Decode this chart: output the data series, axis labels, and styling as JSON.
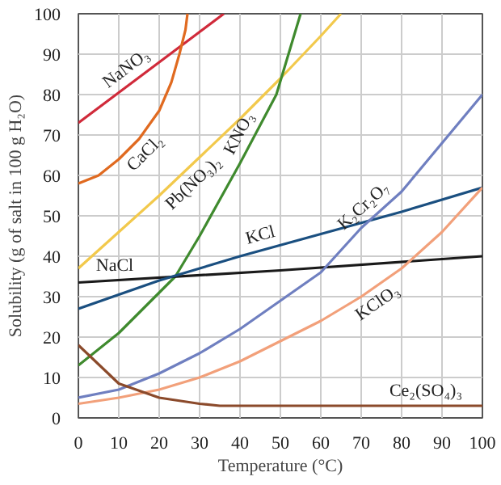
{
  "chart_data": {
    "type": "line",
    "xlabel": "Temperature (°C)",
    "ylabel": "Solubility (g of salt in 100 g H₂O)",
    "xlim": [
      0,
      100
    ],
    "ylim": [
      0,
      100
    ],
    "xticks": [
      0,
      10,
      20,
      30,
      40,
      50,
      60,
      70,
      80,
      90,
      100
    ],
    "yticks": [
      0,
      10,
      20,
      30,
      40,
      50,
      60,
      70,
      80,
      90,
      100
    ],
    "grid": true,
    "marker": "none",
    "line_style": "solid",
    "series": [
      {
        "name": "NaNO₃",
        "color": "#d02a3a",
        "x": [
          0,
          10,
          20,
          30,
          36
        ],
        "values": [
          73,
          80.5,
          88,
          95.5,
          100
        ]
      },
      {
        "name": "CaCl₂",
        "color": "#e06a20",
        "x": [
          0,
          5,
          10,
          15,
          20,
          23,
          25,
          26.5,
          27
        ],
        "values": [
          58,
          60,
          64,
          69,
          76,
          83,
          90,
          96,
          100
        ]
      },
      {
        "name": "Pb(NO₃)₂",
        "color": "#f2c94c",
        "x": [
          0,
          10,
          20,
          30,
          40,
          50,
          60,
          65
        ],
        "values": [
          37,
          46,
          55,
          64.5,
          74,
          84,
          94.5,
          100
        ]
      },
      {
        "name": "KNO₃",
        "color": "#3f8a2e",
        "x": [
          0,
          10,
          20,
          24,
          30,
          40,
          49,
          55
        ],
        "values": [
          13,
          21,
          31,
          35,
          45,
          63,
          80,
          100
        ]
      },
      {
        "name": "NaCl",
        "color": "#1a1a1a",
        "x": [
          0,
          50,
          100
        ],
        "values": [
          33.5,
          36.5,
          40
        ]
      },
      {
        "name": "KCl",
        "color": "#1a4f80",
        "x": [
          0,
          20,
          40,
          60,
          80,
          100
        ],
        "values": [
          27,
          34,
          40,
          45.5,
          51,
          57
        ]
      },
      {
        "name": "K₂Cr₂O₇",
        "color": "#6f7fc0",
        "x": [
          0,
          10,
          20,
          30,
          40,
          50,
          60,
          70,
          80,
          90,
          100
        ],
        "values": [
          5,
          7,
          11,
          16,
          22,
          29,
          36,
          47,
          56,
          68,
          80
        ]
      },
      {
        "name": "KClO₃",
        "color": "#f2a07a",
        "x": [
          0,
          10,
          20,
          30,
          40,
          50,
          60,
          70,
          80,
          90,
          100
        ],
        "values": [
          3.5,
          5,
          7,
          10,
          14,
          19,
          24,
          30,
          37,
          46,
          57
        ]
      },
      {
        "name": "Ce₂(SO₄)₃",
        "color": "#8b4a2b",
        "x": [
          0,
          10,
          20,
          30,
          35,
          50,
          100
        ],
        "values": [
          18,
          8.5,
          5,
          3.5,
          3,
          3,
          3
        ]
      }
    ]
  }
}
